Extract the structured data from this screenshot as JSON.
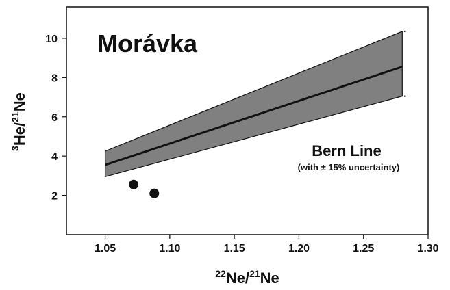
{
  "chart_data": {
    "type": "line",
    "title": "Morávka",
    "xlabel": {
      "sup1": "22",
      "base1": "Ne/",
      "sup2": "21",
      "base2": "Ne"
    },
    "ylabel": {
      "sup1": "3",
      "base1": "He/",
      "sup2": "21",
      "base2": "Ne"
    },
    "xlim": [
      1.02,
      1.3
    ],
    "ylim": [
      0,
      11.6
    ],
    "x_ticks": [
      "1.05",
      "1.10",
      "1.15",
      "1.20",
      "1.25",
      "1.30"
    ],
    "y_ticks": [
      "2",
      "4",
      "6",
      "8",
      "10"
    ],
    "grid": false,
    "band": {
      "x": [
        1.05,
        1.28
      ],
      "lower": [
        2.95,
        7.05
      ],
      "upper": [
        4.25,
        10.35
      ],
      "color": "#808080"
    },
    "series": [
      {
        "x": [
          1.05,
          1.28
        ],
        "y": [
          3.55,
          8.55
        ],
        "color": "#111111"
      }
    ],
    "points": [
      {
        "x": 1.072,
        "y": 2.55
      },
      {
        "x": 1.088,
        "y": 2.1
      }
    ],
    "annotation": {
      "main": "Bern Line",
      "sub": "(with ± 15% uncertainty)"
    }
  }
}
